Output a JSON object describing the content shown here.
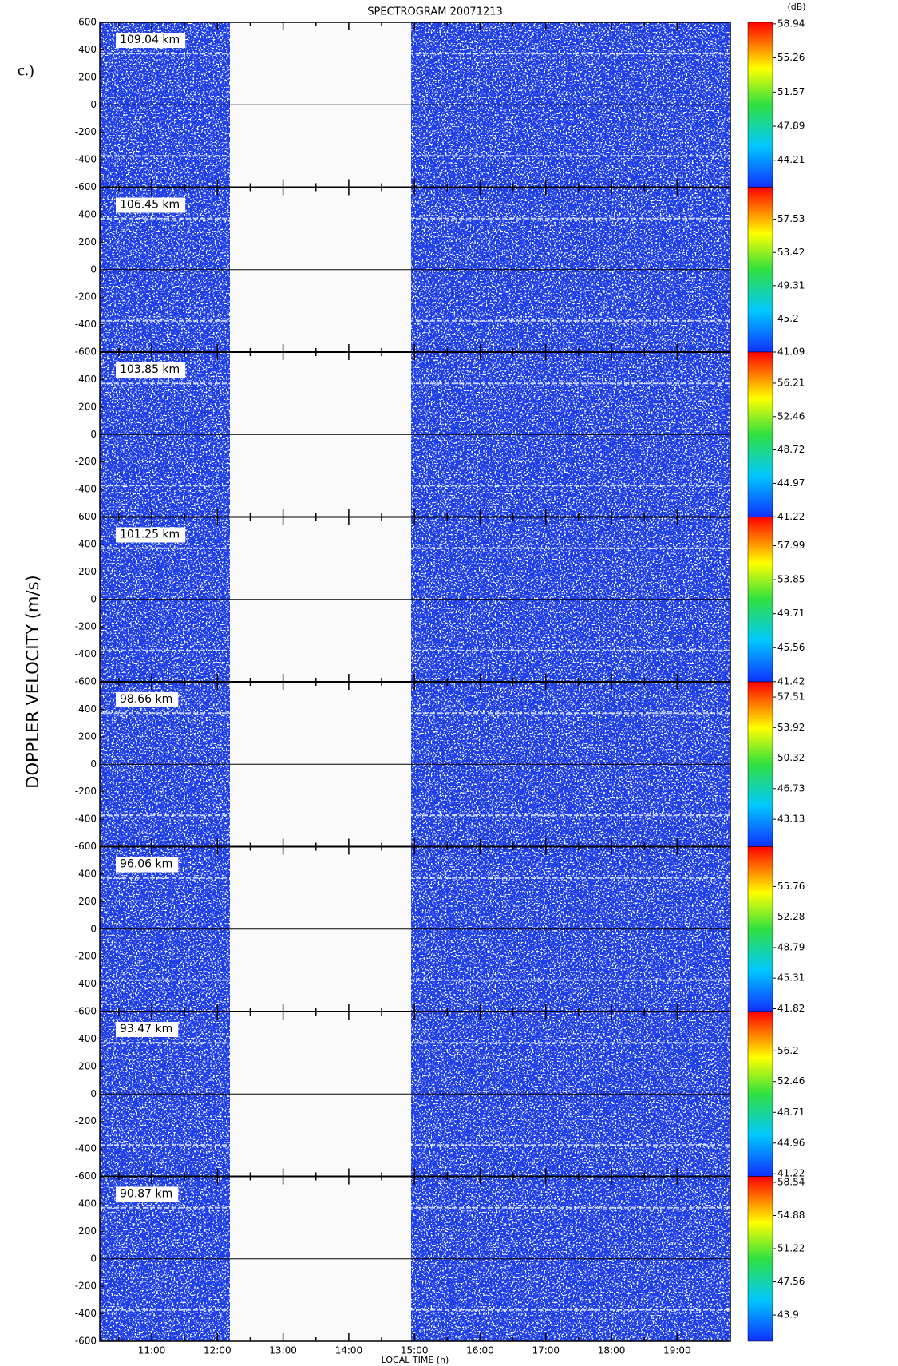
{
  "figure_label": "c.)",
  "chart_data": {
    "type": "spectrogram",
    "title": "SPECTROGRAM 20071213",
    "xlabel": "LOCAL TIME (h)",
    "ylabel": "DOPPLER VELOCITY (m/s)",
    "colorbar_label": "(dB)",
    "xlim": [
      10.21,
      19.81
    ],
    "xticks": [
      {
        "value": 11,
        "label": "11:00"
      },
      {
        "value": 12,
        "label": "12:00"
      },
      {
        "value": 13,
        "label": "13:00"
      },
      {
        "value": 14,
        "label": "14:00"
      },
      {
        "value": 15,
        "label": "15:00"
      },
      {
        "value": 16,
        "label": "16:00"
      },
      {
        "value": 17,
        "label": "17:00"
      },
      {
        "value": 18,
        "label": "18:00"
      },
      {
        "value": 19,
        "label": "19:00"
      }
    ],
    "ylim": [
      -600,
      600
    ],
    "yticks": [
      600,
      400,
      200,
      0,
      -200,
      -400,
      -600
    ],
    "panels": [
      {
        "label": "109.04 km",
        "clim": [
          41.3,
          59.1
        ],
        "cticks": [
          58.94,
          55.26,
          51.57,
          47.89,
          44.21
        ]
      },
      {
        "label": "106.45 km",
        "clim": [
          41.09,
          61.5
        ],
        "cticks": [
          57.53,
          53.42,
          49.31,
          45.2,
          41.09
        ]
      },
      {
        "label": "103.85 km",
        "clim": [
          41.2,
          59.7
        ],
        "cticks": [
          56.21,
          52.46,
          48.72,
          44.97,
          41.22
        ]
      },
      {
        "label": "101.25 km",
        "clim": [
          41.4,
          61.5
        ],
        "cticks": [
          57.99,
          53.85,
          49.71,
          45.56,
          41.42
        ]
      },
      {
        "label": "98.66 km",
        "clim": [
          39.9,
          59.3
        ],
        "cticks": [
          57.51,
          53.92,
          50.32,
          46.73,
          43.13
        ]
      },
      {
        "label": "96.06 km",
        "clim": [
          41.5,
          60.3
        ],
        "cticks": [
          55.76,
          52.28,
          48.79,
          45.31,
          41.82
        ]
      },
      {
        "label": "93.47 km",
        "clim": [
          40.9,
          61.0
        ],
        "cticks": [
          56.2,
          52.46,
          48.71,
          44.96,
          41.22
        ]
      },
      {
        "label": "90.87 km",
        "clim": [
          41.0,
          59.2
        ],
        "cticks": [
          58.54,
          54.88,
          51.22,
          47.56,
          43.9
        ]
      }
    ]
  }
}
